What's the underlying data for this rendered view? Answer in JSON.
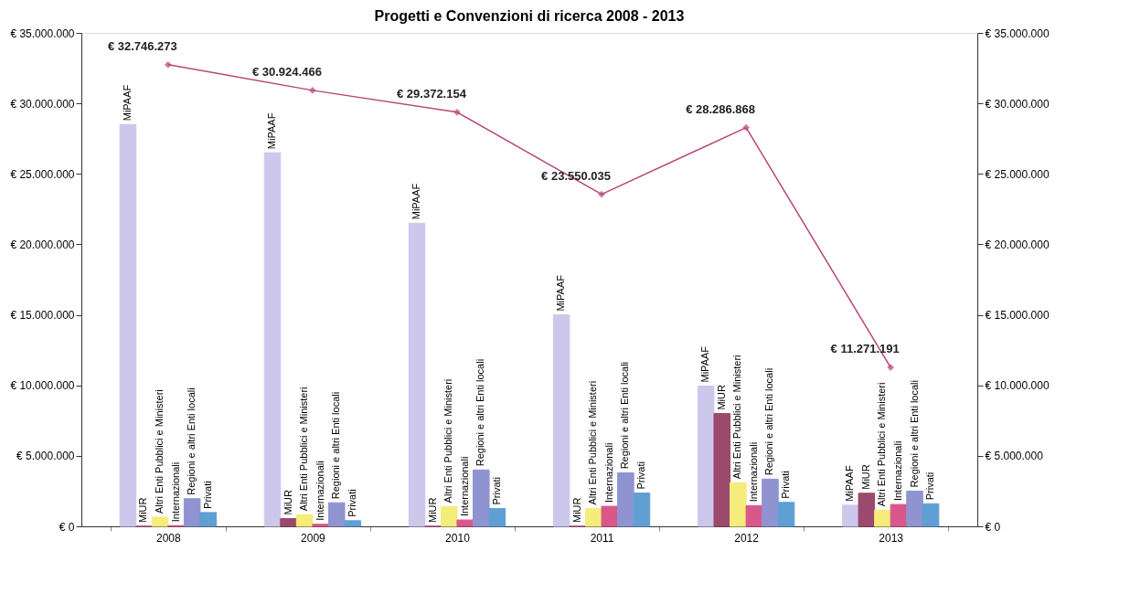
{
  "chart_data": {
    "type": "bar",
    "title": "Progetti e Convenzioni di ricerca 2008 - 2013",
    "categories": [
      "2008",
      "2009",
      "2010",
      "2011",
      "2012",
      "2013"
    ],
    "series": [
      {
        "name": "MiPAAF",
        "color": "#ccc8ec",
        "values": [
          28500000,
          26500000,
          21500000,
          15000000,
          9950000,
          1500000
        ]
      },
      {
        "name": "MiUR",
        "color": "#9b4a6e",
        "values": [
          0,
          550000,
          0,
          0,
          8000000,
          2350000
        ]
      },
      {
        "name": "Altri Enti Pubblici e Ministeri",
        "color": "#f5ec7a",
        "values": [
          650000,
          830000,
          1400000,
          1260000,
          3100000,
          1150000
        ]
      },
      {
        "name": "Internazionali",
        "color": "#d9578a",
        "values": [
          50000,
          150000,
          450000,
          1420000,
          1470000,
          1550000
        ]
      },
      {
        "name": "Regioni e altri Enti locali",
        "color": "#8f94d0",
        "values": [
          1960000,
          1670000,
          4000000,
          3800000,
          3350000,
          2500000
        ]
      },
      {
        "name": "Privati",
        "color": "#5f9fd3",
        "values": [
          980000,
          400000,
          1260000,
          2360000,
          1700000,
          1600000
        ]
      },
      {
        "type": "line",
        "axis": "y2",
        "color": "#b8457a",
        "marker": "diamond",
        "values": [
          32746273,
          30924466,
          29372154,
          23550035,
          28286868,
          11271191
        ],
        "value_labels": [
          "€ 32.746.273",
          "€ 30.924.466",
          "€ 29.372.154",
          "€ 23.550.035",
          "€ 28.286.868",
          "€ 11.271.191"
        ]
      }
    ],
    "ylim": [
      0,
      35000000
    ],
    "yticks": [
      {
        "value": 0,
        "label": "€ 0"
      },
      {
        "value": 5000000,
        "label": "€ 5.000.000"
      },
      {
        "value": 10000000,
        "label": "€ 10.000.000"
      },
      {
        "value": 15000000,
        "label": "€ 15.000.000"
      },
      {
        "value": 20000000,
        "label": "€ 20.000.000"
      },
      {
        "value": 25000000,
        "label": "€ 25.000.000"
      },
      {
        "value": 30000000,
        "label": "€ 30.000.000"
      },
      {
        "value": 35000000,
        "label": "€ 35.000.000"
      }
    ],
    "y2lim": [
      0,
      35000000
    ],
    "y2ticks": [
      {
        "value": 0,
        "label": "€ 0"
      },
      {
        "value": 5000000,
        "label": "€ 5.000.000"
      },
      {
        "value": 10000000,
        "label": "€ 10.000.000"
      },
      {
        "value": 15000000,
        "label": "€ 15.000.000"
      },
      {
        "value": 20000000,
        "label": "€ 20.000.000"
      },
      {
        "value": 25000000,
        "label": "€ 25.000.000"
      },
      {
        "value": 30000000,
        "label": "€ 30.000.000"
      },
      {
        "value": 35000000,
        "label": "€ 35.000.000"
      }
    ],
    "grid": false
  }
}
